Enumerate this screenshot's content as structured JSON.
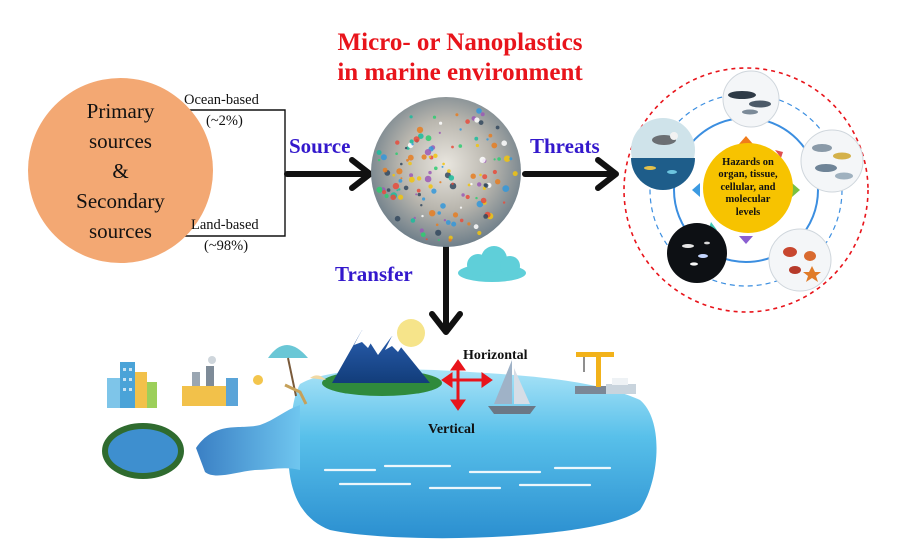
{
  "title": {
    "line1": "Micro- or Nanoplastics",
    "line2": "in marine environment"
  },
  "sources": {
    "line1": "Primary",
    "line2": "sources",
    "line3": "&",
    "line4": "Secondary",
    "line5": "sources",
    "ocean_label": "Ocean-based",
    "ocean_pct": "(~2%)",
    "land_label": "Land-based",
    "land_pct": "(~98%)"
  },
  "arrows": {
    "source": "Source",
    "threats": "Threats",
    "transfer": "Transfer"
  },
  "hazards": {
    "line1": "Hazards on",
    "line2": "organ, tissue,",
    "line3": "cellular, and",
    "line4": "molecular",
    "line5": "levels"
  },
  "ocean": {
    "horizontal": "Horizontal",
    "vertical": "Vertical"
  },
  "colors": {
    "title": "#e8141b",
    "label_blue": "#3318cc",
    "source_circle": "#f3a873",
    "hazard_circle": "#f7c300",
    "ocean": "#5cc4ee",
    "arrow_red": "#e8141b"
  }
}
